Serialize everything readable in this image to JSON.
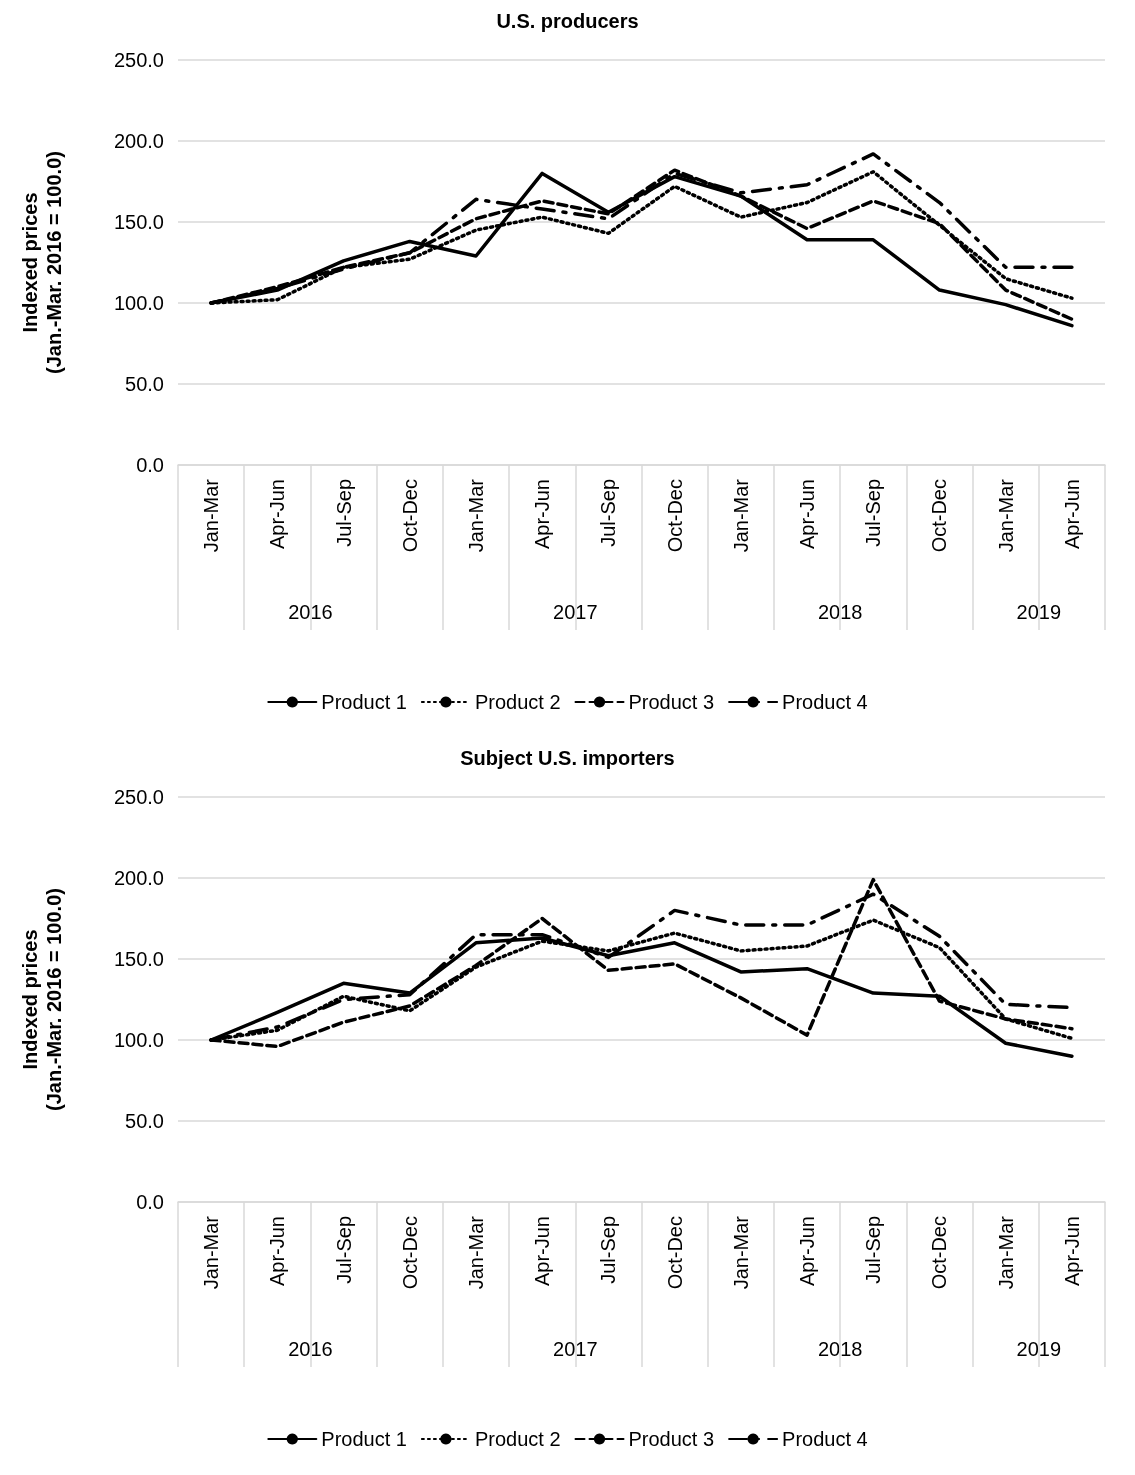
{
  "chart_data": [
    {
      "type": "line",
      "title": "U.S. producers",
      "ylabel": "Indexed prices\n(Jan.-Mar. 2016 = 100.0)",
      "categories": [
        "Jan-Mar",
        "Apr-Jun",
        "Jul-Sep",
        "Oct-Dec",
        "Jan-Mar",
        "Apr-Jun",
        "Jul-Sep",
        "Oct-Dec",
        "Jan-Mar",
        "Apr-Jun",
        "Jul-Sep",
        "Oct-Dec",
        "Jan-Mar",
        "Apr-Jun"
      ],
      "series": [
        {
          "name": "Product 1",
          "color": "#000000",
          "line_style": "solid",
          "values": [
            100,
            108,
            126,
            138,
            129,
            180,
            156,
            178,
            166,
            139,
            139,
            108,
            99,
            86
          ]
        },
        {
          "name": "Product 2",
          "color": "#000000",
          "line_style": "dotted",
          "values": [
            100,
            102,
            122,
            127,
            145,
            153,
            143,
            172,
            153,
            162,
            181,
            148,
            115,
            103
          ]
        },
        {
          "name": "Product 3",
          "color": "#000000",
          "line_style": "dashed",
          "values": [
            100,
            110,
            122,
            131,
            152,
            163,
            155,
            182,
            166,
            146,
            163,
            149,
            108,
            90
          ]
        },
        {
          "name": "Product 4",
          "color": "#000000",
          "line_style": "dashed",
          "values": [
            100,
            109,
            121,
            131,
            164,
            158,
            152,
            180,
            168,
            173,
            192,
            162,
            122,
            122
          ]
        }
      ],
      "annotations": [
        "2016",
        "2017",
        "2018",
        "2019"
      ],
      "ylim": [
        0,
        250
      ],
      "yticks": [
        {
          "value": 0,
          "label": "0.0"
        },
        {
          "value": 50,
          "label": "50.0"
        },
        {
          "value": 100,
          "label": "100.0"
        },
        {
          "value": 150,
          "label": "150.0"
        },
        {
          "value": 200,
          "label": "200.0"
        },
        {
          "value": 250,
          "label": "250.0"
        }
      ],
      "grid": "y",
      "legend": "bottom",
      "marker": "none"
    },
    {
      "type": "line",
      "title": "Subject U.S. importers",
      "ylabel": "Indexed prices\n(Jan.-Mar. 2016 = 100.0)",
      "categories": [
        "Jan-Mar",
        "Apr-Jun",
        "Jul-Sep",
        "Oct-Dec",
        "Jan-Mar",
        "Apr-Jun",
        "Jul-Sep",
        "Oct-Dec",
        "Jan-Mar",
        "Apr-Jun",
        "Jul-Sep",
        "Oct-Dec",
        "Jan-Mar",
        "Apr-Jun"
      ],
      "series": [
        {
          "name": "Product 1",
          "color": "#000000",
          "line_style": "solid",
          "values": [
            100,
            117,
            135,
            129,
            160,
            163,
            152,
            160,
            142,
            144,
            129,
            127,
            98,
            90
          ]
        },
        {
          "name": "Product 2",
          "color": "#000000",
          "line_style": "dotted",
          "values": [
            100,
            106,
            127,
            118,
            145,
            161,
            155,
            166,
            155,
            158,
            174,
            157,
            113,
            101
          ]
        },
        {
          "name": "Product 3",
          "color": "#000000",
          "line_style": "dashed",
          "values": [
            100,
            96,
            111,
            121,
            146,
            175,
            143,
            147,
            126,
            103,
            199,
            124,
            113,
            107
          ]
        },
        {
          "name": "Product 4",
          "color": "#000000",
          "line_style": "dashed",
          "values": [
            100,
            108,
            125,
            128,
            165,
            165,
            151,
            180,
            171,
            171,
            190,
            164,
            122,
            120
          ]
        }
      ],
      "annotations": [
        "2016",
        "2017",
        "2018",
        "2019"
      ],
      "ylim": [
        0,
        250
      ],
      "yticks": [
        {
          "value": 0,
          "label": "0.0"
        },
        {
          "value": 50,
          "label": "50.0"
        },
        {
          "value": 100,
          "label": "100.0"
        },
        {
          "value": 150,
          "label": "150.0"
        },
        {
          "value": 200,
          "label": "200.0"
        },
        {
          "value": 250,
          "label": "250.0"
        }
      ],
      "grid": "y",
      "legend": "bottom",
      "marker": "none"
    }
  ]
}
